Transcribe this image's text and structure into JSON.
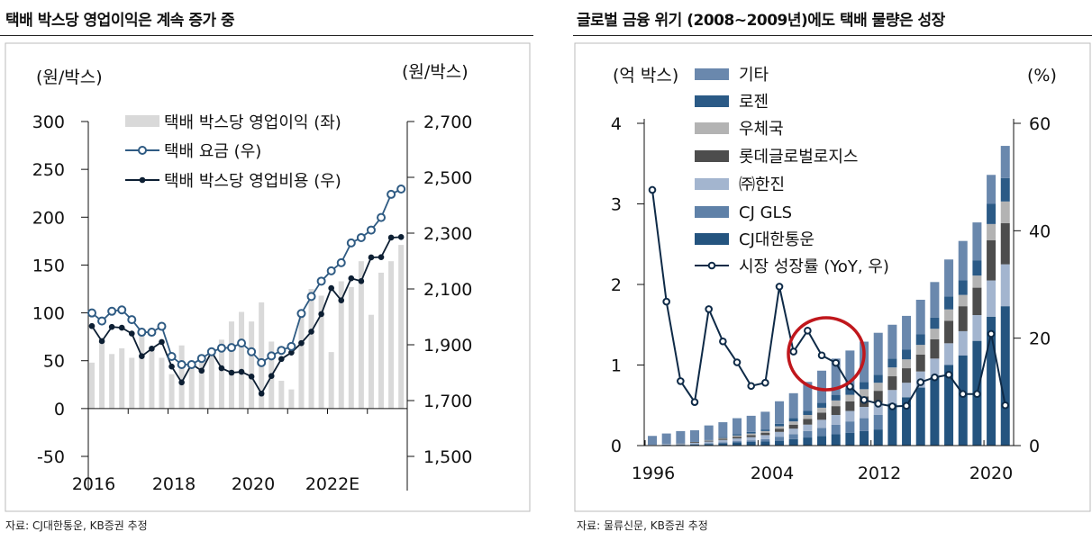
{
  "left_panel": {
    "title": "택배 박스당 영업이익은 계속 증가 중",
    "source": "자료: CJ대한통운, KB증권 추정"
  },
  "right_panel": {
    "title": "글로벌 금융 위기 (2008~2009년)에도 택배 물량은 성장",
    "source": "자료: 물류신문, KB증권 추정"
  },
  "chart_data": [
    {
      "type": "bar+line",
      "left_unit": "(원/박스)",
      "right_unit": "(원/박스)",
      "left_ticks": [
        "300",
        "250",
        "200",
        "150",
        "100",
        "50",
        "0",
        "-50"
      ],
      "left_tick_values": [
        300,
        250,
        200,
        150,
        100,
        50,
        0,
        -50
      ],
      "right_ticks": [
        "2,700",
        "2,500",
        "2,300",
        "2,100",
        "1,900",
        "1,700",
        "1,500"
      ],
      "right_tick_values": [
        2700,
        2500,
        2300,
        2100,
        1900,
        1700,
        1500
      ],
      "ylim_left": [
        -50,
        300
      ],
      "ylim_right": [
        1500,
        2700
      ],
      "x_labels": [
        "2016",
        "2018",
        "2020",
        "2022E"
      ],
      "x_range": "2016Q1-2023Q4 (quarterly)",
      "grid": false,
      "legend_position": "top",
      "series": [
        {
          "name": "택배 박스당 영업이익 (좌)",
          "axis": "left",
          "kind": "bar",
          "color": "#d9d9d9",
          "values": [
            48,
            69,
            57,
            63,
            53,
            77,
            65,
            53,
            36,
            66,
            45,
            53,
            61,
            72,
            91,
            101,
            91,
            111,
            70,
            29,
            20,
            98,
            125,
            118,
            59,
            133,
            127,
            154,
            98,
            142,
            154,
            171
          ]
        },
        {
          "name": "택배 요금 (우)",
          "axis": "right",
          "kind": "line-open",
          "color": "#2f5b83",
          "values": [
            2014,
            1985,
            2020,
            2025,
            1990,
            1945,
            1945,
            1966,
            1858,
            1829,
            1829,
            1851,
            1875,
            1888,
            1890,
            1906,
            1875,
            1836,
            1860,
            1880,
            1894,
            2012,
            2073,
            2128,
            2165,
            2194,
            2265,
            2284,
            2311,
            2356,
            2439,
            2458
          ]
        },
        {
          "name": "택배 박스당 영업비용 (우)",
          "axis": "right",
          "kind": "line-filled",
          "color": "#0d1f33",
          "values": [
            1967,
            1913,
            1964,
            1961,
            1940,
            1859,
            1886,
            1910,
            1822,
            1765,
            1831,
            1807,
            1875,
            1816,
            1800,
            1803,
            1786,
            1725,
            1788,
            1849,
            1872,
            1906,
            1947,
            2010,
            2103,
            2059,
            2138,
            2128,
            2213,
            2214,
            2284,
            2286
          ]
        }
      ]
    },
    {
      "type": "stacked-bar+line",
      "left_unit": "(억 박스)",
      "right_unit": "(%)",
      "left_ticks": [
        "4",
        "3",
        "2",
        "1",
        "0"
      ],
      "left_tick_values": [
        4,
        3,
        2,
        1,
        0
      ],
      "right_ticks": [
        "60",
        "40",
        "20",
        "0"
      ],
      "right_tick_values": [
        60,
        40,
        20,
        0
      ],
      "ylim_left": [
        0,
        4
      ],
      "ylim_right": [
        0,
        60
      ],
      "x_labels": [
        "1996",
        "2004",
        "2012",
        "2020"
      ],
      "years": [
        1996,
        1997,
        1998,
        1999,
        2000,
        2001,
        2002,
        2003,
        2004,
        2005,
        2006,
        2007,
        2008,
        2009,
        2010,
        2011,
        2012,
        2013,
        2014,
        2015,
        2016,
        2017,
        2018,
        2019,
        2020,
        2021
      ],
      "grid": false,
      "legend_position": "top-left",
      "annotation": "red circle around 2007-2009",
      "annotation_color": "#c0171c",
      "stack_order_bottom_to_top": [
        "CJ대한통운",
        "CJ GLS",
        "㈜한진",
        "롯데글로벌로지스",
        "우체국",
        "로젠",
        "기타"
      ],
      "series": [
        {
          "name": "기타",
          "color": "#6a88ad",
          "values": [
            0.11,
            0.13,
            0.155,
            0.145,
            0.18,
            0.185,
            0.2,
            0.2,
            0.22,
            0.28,
            0.31,
            0.36,
            0.4,
            0.45,
            0.47,
            0.5,
            0.52,
            0.42,
            0.42,
            0.43,
            0.44,
            0.46,
            0.49,
            0.47,
            0.36,
            0.4
          ]
        },
        {
          "name": "로젠",
          "color": "#2b5a86",
          "values": [
            0,
            0,
            0,
            0,
            0.005,
            0.01,
            0.015,
            0.02,
            0.02,
            0.03,
            0.04,
            0.05,
            0.06,
            0.07,
            0.08,
            0.09,
            0.1,
            0.11,
            0.12,
            0.13,
            0.14,
            0.16,
            0.18,
            0.19,
            0.25,
            0.29
          ]
        },
        {
          "name": "우체국",
          "color": "#b3b3b3",
          "values": [
            0,
            0,
            0,
            0,
            0.005,
            0.01,
            0.015,
            0.02,
            0.02,
            0.03,
            0.04,
            0.05,
            0.06,
            0.07,
            0.08,
            0.09,
            0.1,
            0.11,
            0.11,
            0.12,
            0.13,
            0.14,
            0.14,
            0.15,
            0.2,
            0.27
          ]
        },
        {
          "name": "롯데글로벌로지스",
          "color": "#4d4d4d",
          "values": [
            0,
            0,
            0.005,
            0.01,
            0.01,
            0.015,
            0.02,
            0.025,
            0.03,
            0.04,
            0.05,
            0.07,
            0.09,
            0.11,
            0.12,
            0.13,
            0.15,
            0.17,
            0.18,
            0.21,
            0.24,
            0.28,
            0.31,
            0.34,
            0.5,
            0.51
          ]
        },
        {
          "name": "㈜한진",
          "color": "#a3b5cf",
          "values": [
            0.005,
            0.01,
            0.01,
            0.015,
            0.02,
            0.03,
            0.035,
            0.04,
            0.05,
            0.06,
            0.07,
            0.08,
            0.1,
            0.12,
            0.13,
            0.14,
            0.15,
            0.17,
            0.18,
            0.2,
            0.23,
            0.27,
            0.3,
            0.32,
            0.45,
            0.52
          ]
        },
        {
          "name": "CJ GLS",
          "color": "#5f81a8",
          "values": [
            0,
            0,
            0,
            0.005,
            0.01,
            0.01,
            0.015,
            0.02,
            0.03,
            0.05,
            0.06,
            0.08,
            0.1,
            0.12,
            0.14,
            0.16,
            0.18,
            0,
            0,
            0,
            0,
            0,
            0,
            0,
            0,
            0
          ]
        },
        {
          "name": "CJ대한통운",
          "color": "#24547f",
          "values": [
            0.005,
            0.01,
            0.01,
            0.015,
            0.02,
            0.03,
            0.04,
            0.045,
            0.05,
            0.06,
            0.08,
            0.1,
            0.12,
            0.14,
            0.16,
            0.18,
            0.2,
            0.52,
            0.6,
            0.72,
            0.85,
            1.0,
            1.12,
            1.3,
            1.6,
            1.73
          ]
        },
        {
          "name": "시장 성장률 (YoY, 우)",
          "axis": "right",
          "kind": "line-open",
          "color": "#0e2a47",
          "values": [
            47.6,
            26.8,
            12.0,
            8.1,
            25.4,
            19.4,
            15.5,
            11.1,
            11.7,
            29.6,
            17.5,
            21.4,
            16.8,
            15.4,
            11.0,
            8.5,
            7.8,
            7.3,
            7.4,
            11.8,
            12.7,
            13.2,
            9.6,
            9.6,
            20.8,
            7.5
          ]
        }
      ]
    }
  ]
}
